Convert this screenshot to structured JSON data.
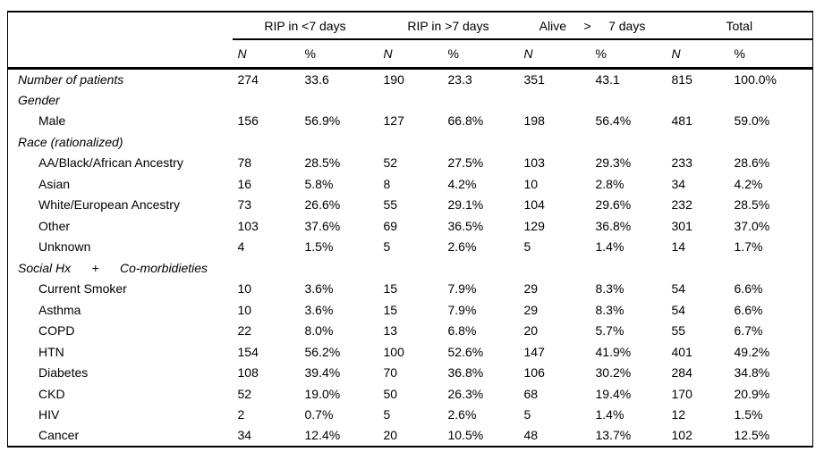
{
  "table": {
    "col_groups": [
      {
        "label": "RIP in <7 days"
      },
      {
        "label": "RIP in >7 days"
      },
      {
        "label": "Alive     >     7 days"
      },
      {
        "label": "Total"
      }
    ],
    "sub_headers": [
      "N",
      "%",
      "N",
      "%",
      "N",
      "%",
      "N",
      "%"
    ],
    "rows": [
      {
        "label": "Number of patients",
        "kind": "section",
        "values": [
          "274",
          "33.6",
          "190",
          "23.3",
          "351",
          "43.1",
          "815",
          "100.0%"
        ]
      },
      {
        "label": "Gender",
        "kind": "section",
        "values": [
          "",
          "",
          "",
          "",
          "",
          "",
          "",
          ""
        ]
      },
      {
        "label": "Male",
        "kind": "item",
        "values": [
          "156",
          "56.9%",
          "127",
          "66.8%",
          "198",
          "56.4%",
          "481",
          "59.0%"
        ]
      },
      {
        "label": "Race (rationalized)",
        "kind": "section",
        "values": [
          "",
          "",
          "",
          "",
          "",
          "",
          "",
          ""
        ]
      },
      {
        "label": "AA/Black/African Ancestry",
        "kind": "item",
        "values": [
          "78",
          "28.5%",
          "52",
          "27.5%",
          "103",
          "29.3%",
          "233",
          "28.6%"
        ]
      },
      {
        "label": "Asian",
        "kind": "item",
        "values": [
          "16",
          "5.8%",
          "8",
          "4.2%",
          "10",
          "2.8%",
          "34",
          "4.2%"
        ]
      },
      {
        "label": "White/European Ancestry",
        "kind": "item",
        "values": [
          "73",
          "26.6%",
          "55",
          "29.1%",
          "104",
          "29.6%",
          "232",
          "28.5%"
        ]
      },
      {
        "label": "Other",
        "kind": "item",
        "values": [
          "103",
          "37.6%",
          "69",
          "36.5%",
          "129",
          "36.8%",
          "301",
          "37.0%"
        ]
      },
      {
        "label": "Unknown",
        "kind": "item",
        "values": [
          "4",
          "1.5%",
          "5",
          "2.6%",
          "5",
          "1.4%",
          "14",
          "1.7%"
        ]
      },
      {
        "label": "Social Hx      +      Co-morbidieties",
        "kind": "section",
        "values": [
          "",
          "",
          "",
          "",
          "",
          "",
          "",
          ""
        ]
      },
      {
        "label": "Current Smoker",
        "kind": "item",
        "values": [
          "10",
          "3.6%",
          "15",
          "7.9%",
          "29",
          "8.3%",
          "54",
          "6.6%"
        ]
      },
      {
        "label": "Asthma",
        "kind": "item",
        "values": [
          "10",
          "3.6%",
          "15",
          "7.9%",
          "29",
          "8.3%",
          "54",
          "6.6%"
        ]
      },
      {
        "label": "COPD",
        "kind": "item",
        "values": [
          "22",
          "8.0%",
          "13",
          "6.8%",
          "20",
          "5.7%",
          "55",
          "6.7%"
        ]
      },
      {
        "label": "HTN",
        "kind": "item",
        "values": [
          "154",
          "56.2%",
          "100",
          "52.6%",
          "147",
          "41.9%",
          "401",
          "49.2%"
        ]
      },
      {
        "label": "Diabetes",
        "kind": "item",
        "values": [
          "108",
          "39.4%",
          "70",
          "36.8%",
          "106",
          "30.2%",
          "284",
          "34.8%"
        ]
      },
      {
        "label": "CKD",
        "kind": "item",
        "values": [
          "52",
          "19.0%",
          "50",
          "26.3%",
          "68",
          "19.4%",
          "170",
          "20.9%"
        ]
      },
      {
        "label": "HIV",
        "kind": "item",
        "values": [
          "2",
          "0.7%",
          "5",
          "2.6%",
          "5",
          "1.4%",
          "12",
          "1.5%"
        ]
      },
      {
        "label": "Cancer",
        "kind": "item",
        "values": [
          "34",
          "12.4%",
          "20",
          "10.5%",
          "48",
          "13.7%",
          "102",
          "12.5%"
        ]
      }
    ]
  }
}
